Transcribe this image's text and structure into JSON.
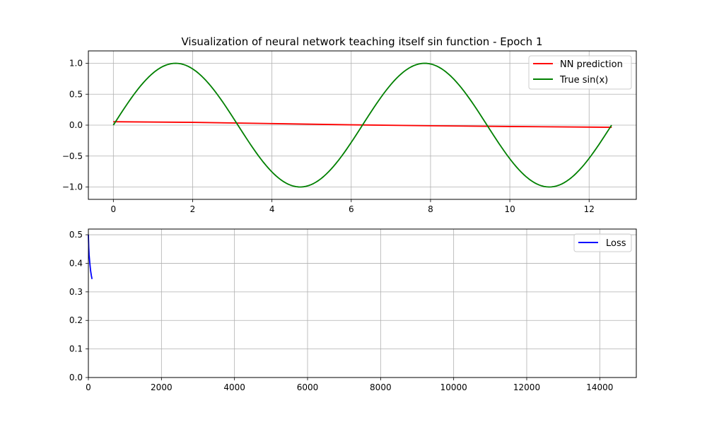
{
  "chart_data": [
    {
      "type": "line",
      "title": "Visualization of neural network teaching itself sin function - Epoch 1",
      "xlabel": "",
      "ylabel": "",
      "xlim": [
        -0.63,
        13.19
      ],
      "ylim": [
        -1.2,
        1.2
      ],
      "grid": true,
      "legend_position": "upper right",
      "xticks": [
        0,
        2,
        4,
        6,
        8,
        10,
        12
      ],
      "xtick_labels": [
        "0",
        "2",
        "4",
        "6",
        "8",
        "10",
        "12"
      ],
      "yticks": [
        -1.0,
        -0.5,
        0.0,
        0.5,
        1.0
      ],
      "ytick_labels": [
        "−1.0",
        "−0.5",
        "0.0",
        "0.5",
        "1.0"
      ],
      "series": [
        {
          "name": "NN prediction",
          "color": "#ff0000",
          "x": [
            0.0,
            2.0,
            4.0,
            6.0,
            8.0,
            10.0,
            12.0,
            12.57
          ],
          "y": [
            0.055,
            0.045,
            0.025,
            0.005,
            -0.01,
            -0.022,
            -0.032,
            -0.035
          ]
        },
        {
          "name": "True sin(x)",
          "color": "#008000",
          "function": "sin",
          "x_range": [
            0.0,
            12.566
          ],
          "samples": 200
        }
      ]
    },
    {
      "type": "line",
      "title": "",
      "xlabel": "",
      "ylabel": "",
      "xlim": [
        0,
        15000
      ],
      "ylim": [
        0,
        0.52
      ],
      "grid": true,
      "legend_position": "upper right",
      "xticks": [
        0,
        2000,
        4000,
        6000,
        8000,
        10000,
        12000,
        14000
      ],
      "xtick_labels": [
        "0",
        "2000",
        "4000",
        "6000",
        "8000",
        "10000",
        "12000",
        "14000"
      ],
      "yticks": [
        0.0,
        0.1,
        0.2,
        0.3,
        0.4,
        0.5
      ],
      "ytick_labels": [
        "0.0",
        "0.1",
        "0.2",
        "0.3",
        "0.4",
        "0.5"
      ],
      "series": [
        {
          "name": "Loss",
          "color": "#0000ff",
          "x": [
            0,
            10,
            20,
            40,
            60,
            80,
            100
          ],
          "y": [
            0.5,
            0.455,
            0.43,
            0.4,
            0.375,
            0.358,
            0.345
          ]
        }
      ]
    }
  ]
}
